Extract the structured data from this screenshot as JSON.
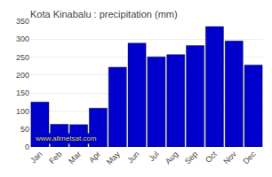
{
  "chart_data": {
    "type": "bar",
    "title": "Kota Kinabalu : precipitation (mm)",
    "categories": [
      "Jan",
      "Feb",
      "Mar",
      "Apr",
      "May",
      "Jun",
      "Jul",
      "Aug",
      "Sep",
      "Oct",
      "Nov",
      "Dec"
    ],
    "values": [
      125,
      63,
      62,
      108,
      222,
      289,
      251,
      257,
      282,
      335,
      295,
      228
    ],
    "color": "#0000cc",
    "ylim": [
      0,
      350
    ],
    "yticks": [
      0,
      50,
      100,
      150,
      200,
      250,
      300,
      350
    ],
    "grid": true,
    "annotations": [
      "www.allmetsat.com"
    ]
  }
}
